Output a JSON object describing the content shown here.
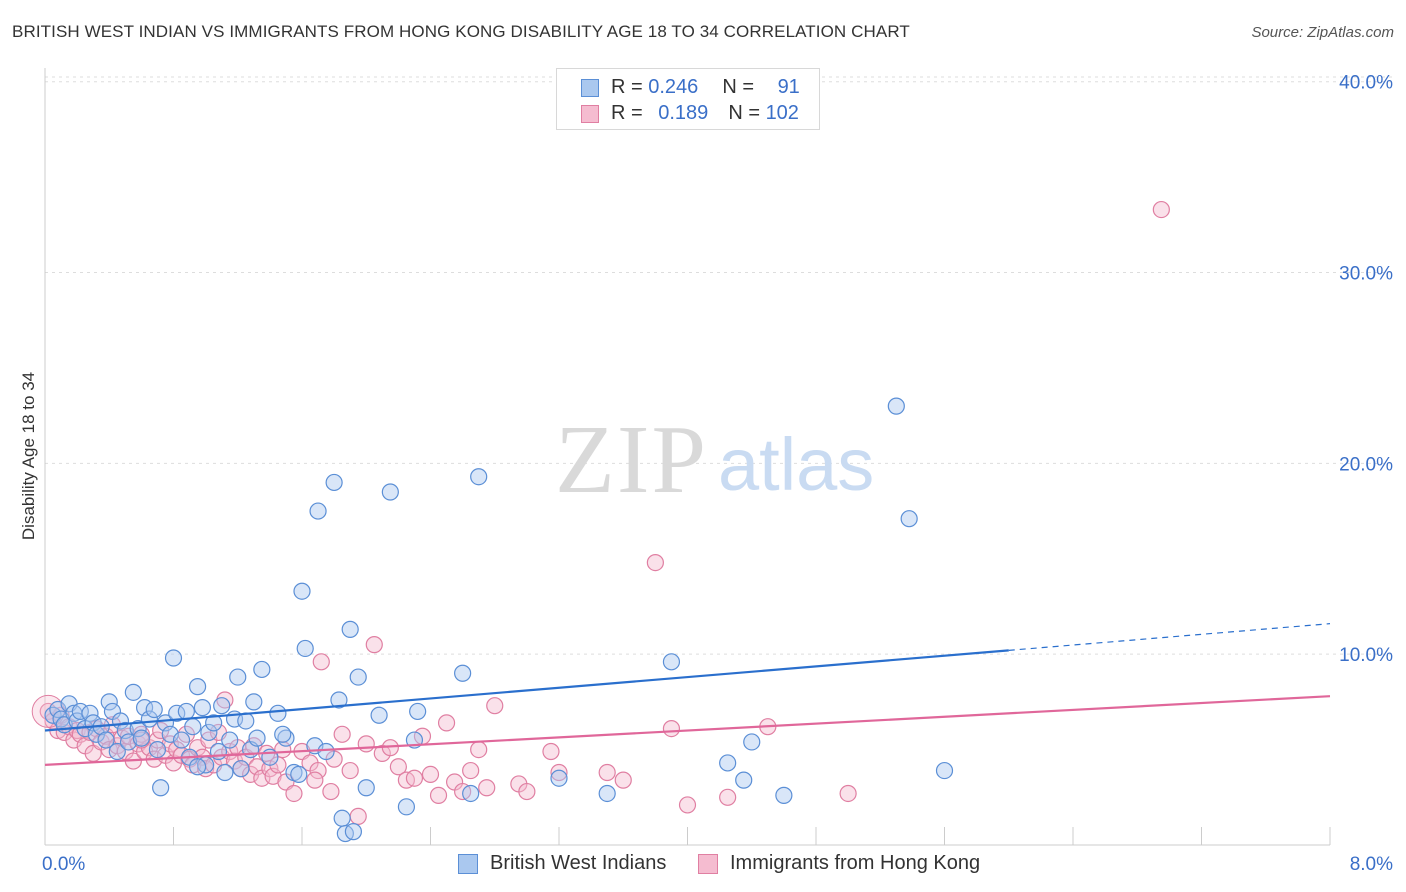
{
  "title": "BRITISH WEST INDIAN VS IMMIGRANTS FROM HONG KONG DISABILITY AGE 18 TO 34 CORRELATION CHART",
  "source": "Source: ZipAtlas.com",
  "watermark": {
    "zip": "ZIP",
    "atlas": "atlas"
  },
  "colors": {
    "blue_fill": "#aac8ef",
    "blue_stroke": "#5b8fd6",
    "blue_line": "#2a6fcd",
    "pink_fill": "#f5bcd0",
    "pink_stroke": "#e07fa2",
    "pink_line": "#e0679a",
    "tick_label": "#3a6fc8",
    "grid": "#dddddd"
  },
  "stats_legend": {
    "rows": [
      {
        "r_label": "R = ",
        "r_value": "0.246",
        "n_label": "N = ",
        "n_value": "91"
      },
      {
        "r_label": "R = ",
        "r_value": "0.189",
        "n_label": "N = ",
        "n_value": "102"
      }
    ]
  },
  "chart_data": {
    "type": "scatter",
    "title": "BRITISH WEST INDIAN VS IMMIGRANTS FROM HONG KONG DISABILITY AGE 18 TO 34 CORRELATION CHART",
    "xlabel": "",
    "ylabel": "Disability Age 18 to 34",
    "xlim": [
      0,
      8
    ],
    "ylim": [
      0,
      42
    ],
    "x_tick_labels": [
      "0.0%",
      "8.0%"
    ],
    "y_ticks": [
      10,
      20,
      30,
      40
    ],
    "y_tick_labels": [
      "10.0%",
      "20.0%",
      "30.0%",
      "40.0%"
    ],
    "grid": true,
    "legend_position": "bottom",
    "series": [
      {
        "name": "British West Indians",
        "color": "#5b8fd6",
        "r": 0.246,
        "n": 91,
        "trend": {
          "x0": 0.0,
          "y0": 6.0,
          "x1": 6.0,
          "y1": 10.2,
          "dash_to_x": 8.0,
          "dash_to_y": 11.6
        },
        "points": [
          [
            0.05,
            6.8
          ],
          [
            0.08,
            7.1
          ],
          [
            0.1,
            6.6
          ],
          [
            0.12,
            6.3
          ],
          [
            0.15,
            7.4
          ],
          [
            0.18,
            6.9
          ],
          [
            0.2,
            6.5
          ],
          [
            0.22,
            7.0
          ],
          [
            0.25,
            6.1
          ],
          [
            0.28,
            6.9
          ],
          [
            0.3,
            6.4
          ],
          [
            0.32,
            5.8
          ],
          [
            0.35,
            6.2
          ],
          [
            0.38,
            5.5
          ],
          [
            0.4,
            7.5
          ],
          [
            0.42,
            7.0
          ],
          [
            0.45,
            4.9
          ],
          [
            0.47,
            6.5
          ],
          [
            0.5,
            6.0
          ],
          [
            0.52,
            5.4
          ],
          [
            0.55,
            8.0
          ],
          [
            0.58,
            6.1
          ],
          [
            0.6,
            5.6
          ],
          [
            0.62,
            7.2
          ],
          [
            0.65,
            6.6
          ],
          [
            0.68,
            7.1
          ],
          [
            0.7,
            5.0
          ],
          [
            0.72,
            3.0
          ],
          [
            0.75,
            6.4
          ],
          [
            0.78,
            5.8
          ],
          [
            0.8,
            9.8
          ],
          [
            0.82,
            6.9
          ],
          [
            0.85,
            5.5
          ],
          [
            0.88,
            7.0
          ],
          [
            0.9,
            4.6
          ],
          [
            0.92,
            6.2
          ],
          [
            0.95,
            8.3
          ],
          [
            0.98,
            7.2
          ],
          [
            1.0,
            4.2
          ],
          [
            1.02,
            5.9
          ],
          [
            1.05,
            6.4
          ],
          [
            1.08,
            4.9
          ],
          [
            1.1,
            7.3
          ],
          [
            1.12,
            3.8
          ],
          [
            1.15,
            5.5
          ],
          [
            1.18,
            6.6
          ],
          [
            1.2,
            8.8
          ],
          [
            1.22,
            4.0
          ],
          [
            1.25,
            6.5
          ],
          [
            1.28,
            5.0
          ],
          [
            1.3,
            7.5
          ],
          [
            1.32,
            5.6
          ],
          [
            1.35,
            9.2
          ],
          [
            1.4,
            4.6
          ],
          [
            1.45,
            6.9
          ],
          [
            1.5,
            5.6
          ],
          [
            1.55,
            3.8
          ],
          [
            1.6,
            13.3
          ],
          [
            1.62,
            10.3
          ],
          [
            1.68,
            5.2
          ],
          [
            1.7,
            17.5
          ],
          [
            1.75,
            4.9
          ],
          [
            1.8,
            19.0
          ],
          [
            1.83,
            7.6
          ],
          [
            1.85,
            1.4
          ],
          [
            1.87,
            0.6
          ],
          [
            1.9,
            11.3
          ],
          [
            1.92,
            0.7
          ],
          [
            1.95,
            8.8
          ],
          [
            2.0,
            3.0
          ],
          [
            2.08,
            6.8
          ],
          [
            2.15,
            18.5
          ],
          [
            2.25,
            2.0
          ],
          [
            2.3,
            5.5
          ],
          [
            2.32,
            7.0
          ],
          [
            2.6,
            9.0
          ],
          [
            2.65,
            2.7
          ],
          [
            2.7,
            19.3
          ],
          [
            3.2,
            3.5
          ],
          [
            3.5,
            2.7
          ],
          [
            3.9,
            9.6
          ],
          [
            4.25,
            4.3
          ],
          [
            4.35,
            3.4
          ],
          [
            4.4,
            5.4
          ],
          [
            4.6,
            2.6
          ],
          [
            5.3,
            23.0
          ],
          [
            5.38,
            17.1
          ],
          [
            5.6,
            3.9
          ],
          [
            1.48,
            5.8
          ],
          [
            0.95,
            4.1
          ],
          [
            1.58,
            3.7
          ]
        ]
      },
      {
        "name": "Immigrants from Hong Kong",
        "color": "#e07fa2",
        "r": 0.189,
        "n": 102,
        "trend": {
          "x0": 0.0,
          "y0": 4.2,
          "x1": 8.0,
          "y1": 7.8
        },
        "points": [
          [
            0.02,
            7.0
          ],
          [
            0.05,
            6.5
          ],
          [
            0.08,
            6.0
          ],
          [
            0.1,
            6.8
          ],
          [
            0.12,
            5.9
          ],
          [
            0.15,
            6.2
          ],
          [
            0.18,
            5.5
          ],
          [
            0.2,
            6.0
          ],
          [
            0.22,
            5.8
          ],
          [
            0.25,
            5.2
          ],
          [
            0.28,
            5.9
          ],
          [
            0.3,
            4.8
          ],
          [
            0.32,
            6.1
          ],
          [
            0.35,
            5.4
          ],
          [
            0.38,
            5.7
          ],
          [
            0.4,
            5.0
          ],
          [
            0.42,
            6.3
          ],
          [
            0.45,
            5.2
          ],
          [
            0.48,
            5.6
          ],
          [
            0.5,
            4.9
          ],
          [
            0.52,
            5.7
          ],
          [
            0.55,
            4.4
          ],
          [
            0.58,
            5.3
          ],
          [
            0.6,
            5.8
          ],
          [
            0.62,
            4.9
          ],
          [
            0.65,
            5.1
          ],
          [
            0.68,
            4.5
          ],
          [
            0.7,
            5.5
          ],
          [
            0.72,
            6.0
          ],
          [
            0.75,
            4.7
          ],
          [
            0.78,
            5.3
          ],
          [
            0.8,
            4.3
          ],
          [
            0.82,
            5.0
          ],
          [
            0.85,
            4.7
          ],
          [
            0.88,
            5.8
          ],
          [
            0.9,
            4.5
          ],
          [
            0.92,
            4.2
          ],
          [
            0.95,
            5.1
          ],
          [
            0.98,
            4.6
          ],
          [
            1.0,
            4.0
          ],
          [
            1.02,
            5.5
          ],
          [
            1.05,
            4.2
          ],
          [
            1.08,
            5.9
          ],
          [
            1.1,
            4.6
          ],
          [
            1.12,
            7.6
          ],
          [
            1.15,
            4.9
          ],
          [
            1.18,
            4.4
          ],
          [
            1.2,
            5.1
          ],
          [
            1.22,
            4.0
          ],
          [
            1.25,
            4.6
          ],
          [
            1.28,
            3.7
          ],
          [
            1.3,
            5.2
          ],
          [
            1.32,
            4.1
          ],
          [
            1.35,
            3.5
          ],
          [
            1.38,
            4.8
          ],
          [
            1.4,
            4.0
          ],
          [
            1.42,
            3.6
          ],
          [
            1.45,
            4.2
          ],
          [
            1.48,
            5.0
          ],
          [
            1.5,
            3.3
          ],
          [
            1.55,
            2.7
          ],
          [
            1.6,
            4.9
          ],
          [
            1.65,
            4.3
          ],
          [
            1.7,
            3.9
          ],
          [
            1.72,
            9.6
          ],
          [
            1.78,
            2.8
          ],
          [
            1.8,
            4.5
          ],
          [
            1.85,
            5.8
          ],
          [
            1.9,
            3.9
          ],
          [
            1.95,
            1.5
          ],
          [
            2.0,
            5.3
          ],
          [
            2.05,
            10.5
          ],
          [
            2.1,
            4.8
          ],
          [
            2.15,
            5.1
          ],
          [
            2.2,
            4.1
          ],
          [
            2.25,
            3.4
          ],
          [
            2.3,
            3.5
          ],
          [
            2.35,
            5.7
          ],
          [
            2.4,
            3.7
          ],
          [
            2.45,
            2.6
          ],
          [
            2.5,
            6.4
          ],
          [
            2.55,
            3.3
          ],
          [
            2.6,
            2.8
          ],
          [
            2.65,
            3.9
          ],
          [
            2.7,
            5.0
          ],
          [
            2.75,
            3.0
          ],
          [
            2.8,
            7.3
          ],
          [
            2.95,
            3.2
          ],
          [
            3.0,
            2.8
          ],
          [
            3.15,
            4.9
          ],
          [
            3.2,
            3.8
          ],
          [
            3.5,
            3.8
          ],
          [
            3.6,
            3.4
          ],
          [
            3.8,
            14.8
          ],
          [
            3.9,
            6.1
          ],
          [
            4.0,
            2.1
          ],
          [
            4.25,
            2.5
          ],
          [
            4.5,
            6.2
          ],
          [
            5.0,
            2.7
          ],
          [
            6.95,
            33.3
          ],
          [
            0.6,
            5.5
          ],
          [
            1.68,
            3.4
          ]
        ]
      }
    ]
  }
}
